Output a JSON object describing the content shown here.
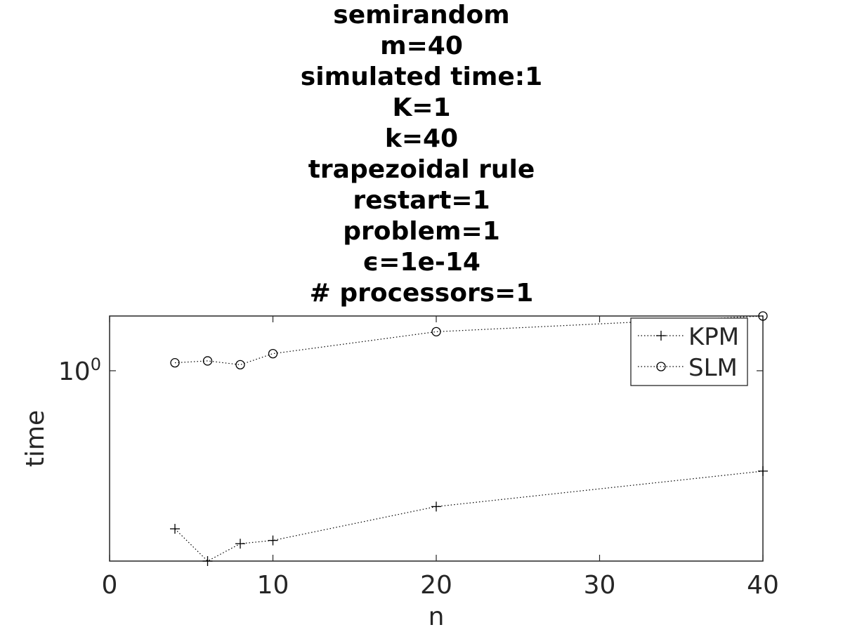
{
  "chart_data": {
    "type": "line",
    "title_lines": [
      "semirandom",
      "m=40",
      "simulated time:1",
      "K=1",
      "k=40",
      "trapezoidal rule",
      "restart=1",
      "problem=1",
      "ϵ=1e-14",
      "# processors=1"
    ],
    "xlabel": "n",
    "ylabel": "time",
    "xlim": [
      0,
      40
    ],
    "x_ticks": [
      0,
      10,
      20,
      30,
      40
    ],
    "x_tick_labels": [
      "0",
      "10",
      "20",
      "30",
      "40"
    ],
    "yscale": "log",
    "ylim": [
      0.158,
      1.7
    ],
    "y_ticks": [
      1
    ],
    "y_tick_labels": [
      {
        "base": "10",
        "exp": "0"
      }
    ],
    "grid": false,
    "legend": "top-right",
    "series": [
      {
        "name": "KPM",
        "marker": "plus",
        "line": "dotted",
        "x": [
          4,
          6,
          8,
          10,
          20,
          40
        ],
        "y": [
          0.216,
          0.158,
          0.187,
          0.193,
          0.268,
          0.378
        ]
      },
      {
        "name": "SLM",
        "marker": "circle",
        "line": "dotted",
        "x": [
          4,
          6,
          8,
          10,
          20,
          40
        ],
        "y": [
          1.08,
          1.1,
          1.06,
          1.18,
          1.46,
          1.7
        ]
      }
    ]
  }
}
